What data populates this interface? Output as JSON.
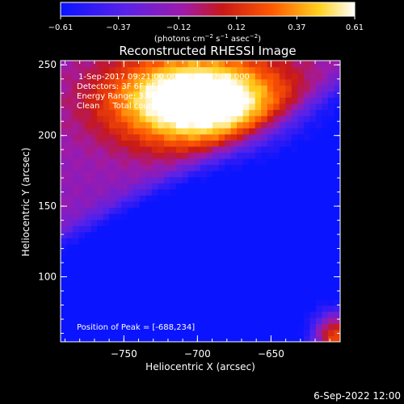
{
  "chart_data": {
    "type": "heatmap",
    "title": "Reconstructed RHESSI Image",
    "xlabel": "Heliocentric X (arcsec)",
    "ylabel": "Heliocentric Y (arcsec)",
    "xlim": [
      -793,
      -603
    ],
    "ylim": [
      54,
      253
    ],
    "x_ticks": [
      -750,
      -700,
      -650
    ],
    "x_tick_labels": [
      "−750",
      "−700",
      "−650"
    ],
    "y_ticks": [
      100,
      150,
      200,
      250
    ],
    "y_tick_labels": [
      "100",
      "150",
      "200",
      "250"
    ],
    "colorbar": {
      "range": [
        -0.61,
        0.61
      ],
      "ticks": [
        -0.61,
        -0.37,
        -0.12,
        0.12,
        0.37,
        0.61
      ],
      "tick_labels": [
        "−0.61",
        "−0.37",
        "−0.12",
        "0.12",
        "0.37",
        "0.61"
      ],
      "unit_main": "(photons cm",
      "unit_sup1": "−2",
      "unit_mid": " s",
      "unit_sup2": "−1",
      "unit_after": " asec",
      "unit_sup3": "−2",
      "unit_end": ")"
    },
    "peak": [
      -688,
      234
    ],
    "features": [
      {
        "name": "bright source",
        "x": -700,
        "y": 225,
        "level": 0.61
      },
      {
        "name": "corner source",
        "x": -606,
        "y": 58,
        "level": 0.45
      },
      {
        "name": "negative trough",
        "x": -712,
        "y": 110,
        "level": -0.55
      }
    ]
  },
  "annotations": [
    "1-Sep-2017 09:21:00.000 to 09:27:00.000",
    "Detectors: 3F 6F 8F, Att 0",
    "Energy Range: 3.0 - 6.0 keV",
    "Clean     Total counts: 1.07e+03"
  ],
  "peak_label": "Position of Peak = [-688,234]",
  "footer_date": "6-Sep-2022 12:00"
}
